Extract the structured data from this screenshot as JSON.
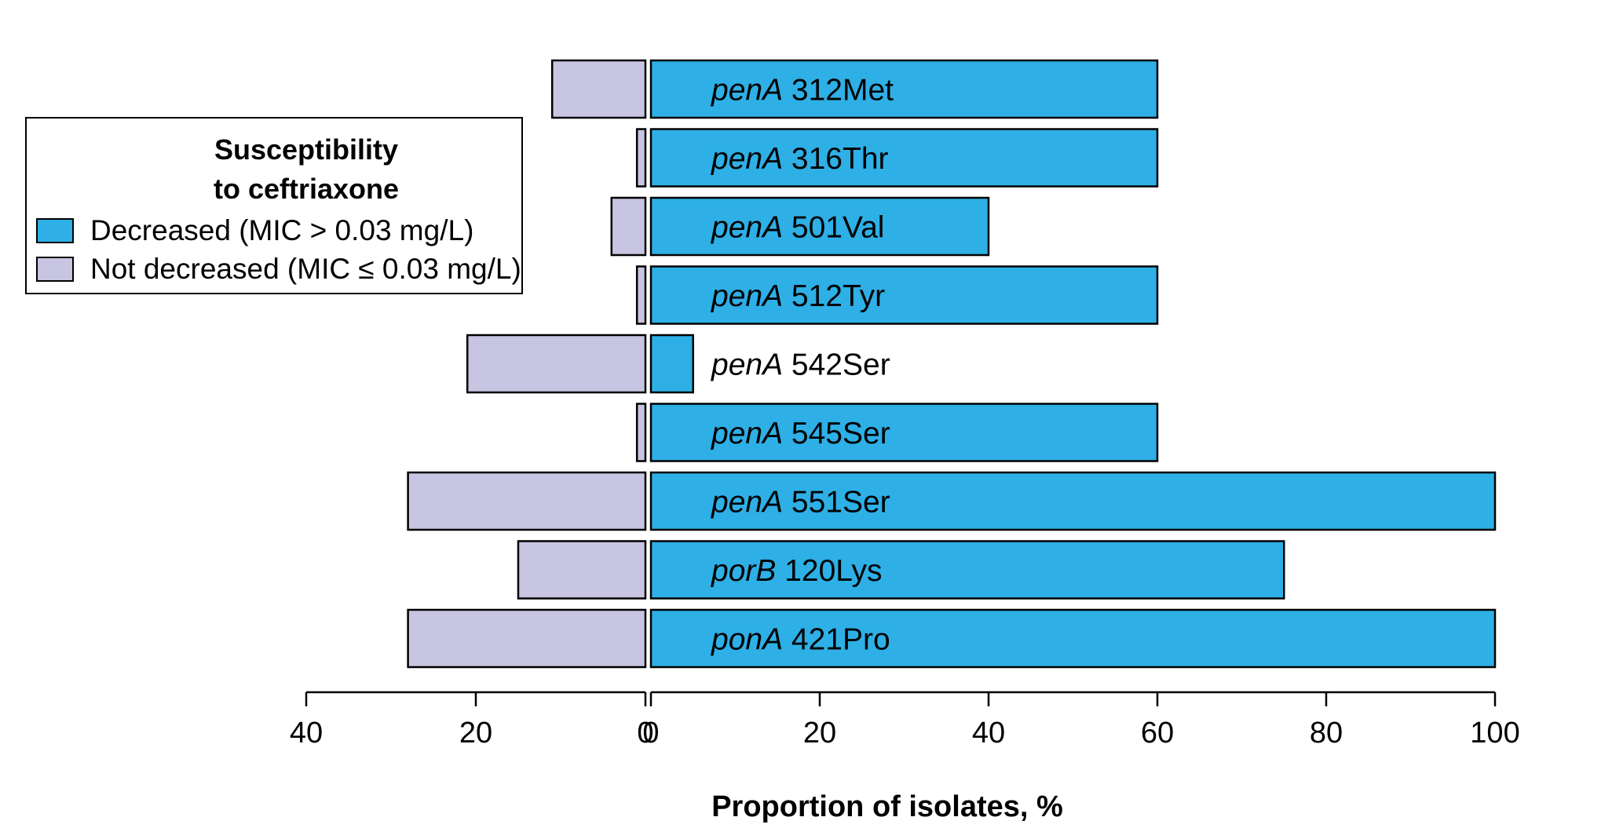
{
  "chart_data": {
    "type": "bar",
    "orientation": "horizontal-diverging",
    "categories": [
      {
        "gene": "penA",
        "variant": "312Met"
      },
      {
        "gene": "penA",
        "variant": "316Thr"
      },
      {
        "gene": "penA",
        "variant": "501Val"
      },
      {
        "gene": "penA",
        "variant": "512Tyr"
      },
      {
        "gene": "penA",
        "variant": "542Ser"
      },
      {
        "gene": "penA",
        "variant": "545Ser"
      },
      {
        "gene": "penA",
        "variant": "551Ser"
      },
      {
        "gene": "porB",
        "variant": "120Lys"
      },
      {
        "gene": "ponA",
        "variant": "421Pro"
      }
    ],
    "series": [
      {
        "name": "Decreased (MIC > 0.03 mg/L)",
        "color": "#2eafe6",
        "direction": "right",
        "values": [
          60,
          60,
          40,
          60,
          5,
          60,
          100,
          75,
          100
        ]
      },
      {
        "name": "Not decreased (MIC ≤ 0.03 mg/L)",
        "color": "#c7c5e2",
        "direction": "left",
        "values": [
          11,
          1,
          4,
          1,
          21,
          1,
          28,
          15,
          28
        ]
      }
    ],
    "xlabel": "Proportion of isolates, %",
    "x_ticks_left": [
      40,
      20,
      0
    ],
    "x_ticks_right": [
      0,
      20,
      40,
      60,
      80,
      100
    ],
    "xlim_left": [
      0,
      40
    ],
    "xlim_right": [
      0,
      100
    ],
    "grid": false,
    "legend": {
      "title_line1": "Susceptibility",
      "title_line2": "to ceftriaxone",
      "placement": "top-left"
    }
  }
}
